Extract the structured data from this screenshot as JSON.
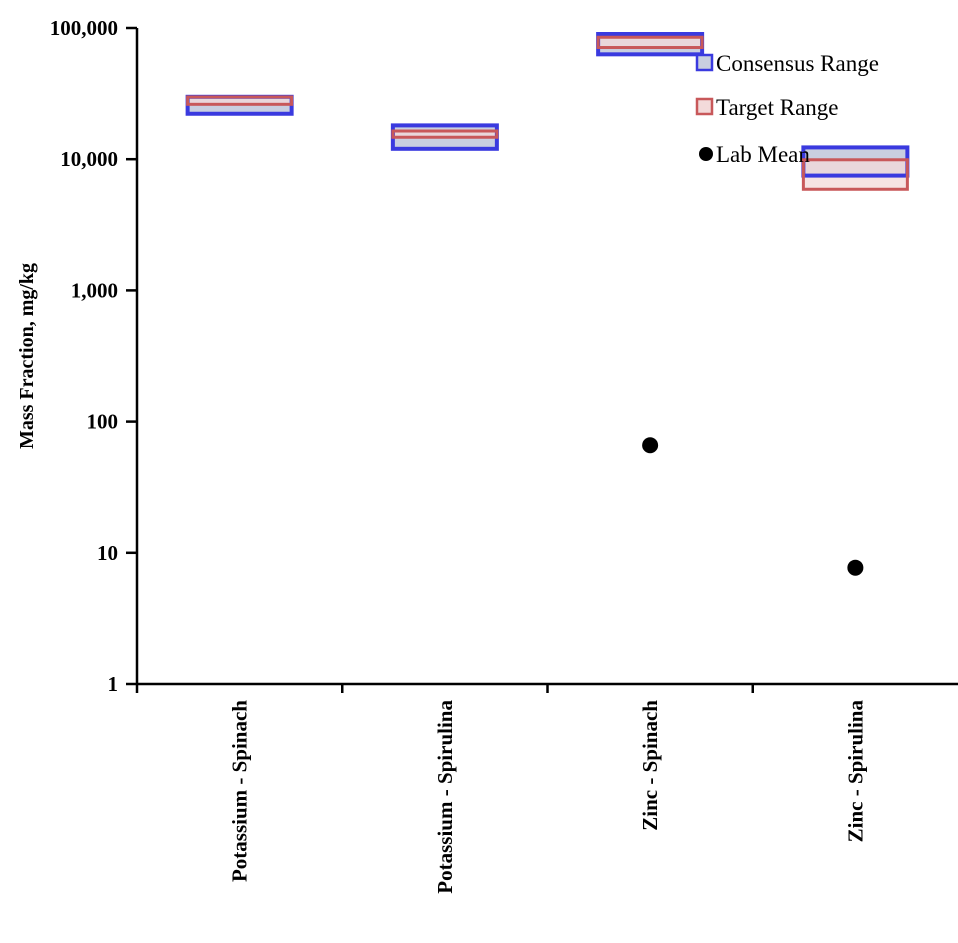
{
  "chart_data": {
    "type": "range-box",
    "ylabel": "Mass Fraction, mg/kg",
    "yscale": "log",
    "ylim": [
      1,
      100000
    ],
    "yticks": [
      1,
      10,
      100,
      1000,
      10000,
      100000
    ],
    "ytick_labels": [
      "1",
      "10",
      "100",
      "1,000",
      "10,000",
      "100,000"
    ],
    "categories": [
      "Potassium - Spinach",
      "Potassium - Spirulina",
      "Zinc - Spinach",
      "Zinc - Spirulina"
    ],
    "legend": {
      "position": "top-right",
      "entries": [
        "Consensus Range",
        "Target Range",
        "Lab Mean"
      ]
    },
    "series": [
      {
        "name": "Consensus Range",
        "ranges": [
          [
            22200,
            29900
          ],
          [
            12000,
            18100
          ],
          [
            63000,
            90000
          ],
          [
            7500,
            12300
          ]
        ]
      },
      {
        "name": "Target Range",
        "ranges": [
          [
            26200,
            29800
          ],
          [
            14700,
            16400
          ],
          [
            71000,
            85000
          ],
          [
            5900,
            9900
          ]
        ]
      },
      {
        "name": "Lab Mean",
        "values": [
          null,
          null,
          66,
          7.7
        ]
      }
    ],
    "colors": {
      "consensus_stroke": "#3a3adf",
      "consensus_fill": "#c9cfe0",
      "target_stroke": "#c8585a",
      "target_fill": "#f3dada",
      "lab_mean": "#000000"
    }
  }
}
